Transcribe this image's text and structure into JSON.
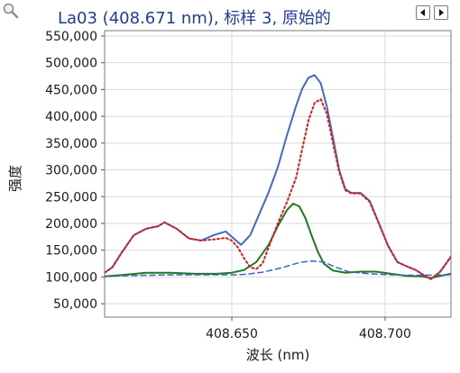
{
  "header": {
    "title": "La03 (408.671 nm), 标样 3, 原始的",
    "prev_icon": "triangle-left-icon",
    "next_icon": "triangle-right-icon",
    "zoom_icon": "magnifier-icon"
  },
  "chart_data": {
    "type": "line",
    "title": "La03 (408.671 nm), 标样 3, 原始的",
    "xlabel": "波长 (nm)",
    "ylabel": "强度",
    "xlim": [
      408.6085,
      408.7215
    ],
    "ylim": [
      25000,
      560000
    ],
    "x_ticks": [
      408.65,
      408.7
    ],
    "x_tick_labels": [
      "408.650",
      "408.700"
    ],
    "y_ticks": [
      50000,
      100000,
      150000,
      200000,
      250000,
      300000,
      350000,
      400000,
      450000,
      500000,
      550000
    ],
    "y_tick_labels": [
      "50,000",
      "100,000",
      "150,000",
      "200,000",
      "250,000",
      "300,000",
      "350,000",
      "400,000",
      "450,000",
      "500,000",
      "550,000"
    ],
    "grid": true,
    "series": [
      {
        "color": "#4169c9",
        "dash": "solid",
        "width": 2,
        "x": [
          408.6085,
          408.611,
          408.614,
          408.618,
          408.622,
          408.626,
          408.628,
          408.632,
          408.636,
          408.64,
          408.644,
          408.648,
          408.65,
          408.653,
          408.656,
          408.659,
          408.662,
          408.665,
          408.668,
          408.671,
          408.673,
          408.675,
          408.677,
          408.679,
          408.681,
          408.683,
          408.685,
          408.687,
          408.689,
          408.692,
          408.695,
          408.698,
          408.701,
          408.704,
          408.707,
          408.71,
          408.713,
          408.715,
          408.718,
          408.7215
        ],
        "y": [
          108000,
          118000,
          145000,
          178000,
          190000,
          195000,
          202000,
          190000,
          172000,
          168000,
          178000,
          185000,
          175000,
          160000,
          178000,
          218000,
          258000,
          305000,
          365000,
          420000,
          452000,
          472000,
          477000,
          462000,
          418000,
          360000,
          300000,
          264000,
          257000,
          257000,
          242000,
          200000,
          158000,
          128000,
          120000,
          113000,
          102000,
          96000,
          110000,
          138000
        ]
      },
      {
        "color": "#e01818",
        "dash": "dot",
        "width": 2,
        "x": [
          408.6085,
          408.611,
          408.614,
          408.618,
          408.622,
          408.626,
          408.628,
          408.632,
          408.636,
          408.64,
          408.644,
          408.648,
          408.65,
          408.652,
          408.654,
          408.656,
          408.658,
          408.66,
          408.662,
          408.665,
          408.668,
          408.671,
          408.673,
          408.675,
          408.677,
          408.679,
          408.681,
          408.683,
          408.685,
          408.687,
          408.689,
          408.692,
          408.695,
          408.698,
          408.701,
          408.704,
          408.707,
          408.71,
          408.713,
          408.715,
          408.718,
          408.7215
        ],
        "y": [
          108000,
          118000,
          145000,
          178000,
          190000,
          195000,
          202000,
          190000,
          172000,
          168000,
          170000,
          173000,
          168000,
          155000,
          135000,
          118000,
          115000,
          125000,
          155000,
          200000,
          240000,
          286000,
          340000,
          392000,
          425000,
          432000,
          405000,
          350000,
          297000,
          262000,
          256000,
          256000,
          240000,
          200000,
          158000,
          128000,
          120000,
          113000,
          102000,
          96000,
          110000,
          138000
        ]
      },
      {
        "color": "#1f7a1f",
        "dash": "solid",
        "width": 2,
        "x": [
          408.6085,
          408.615,
          408.622,
          408.63,
          408.638,
          408.645,
          408.65,
          408.654,
          408.658,
          408.662,
          408.665,
          408.668,
          408.67,
          408.672,
          408.674,
          408.676,
          408.678,
          408.68,
          408.683,
          408.687,
          408.692,
          408.697,
          408.702,
          408.707,
          408.712,
          408.715,
          408.718,
          408.7215
        ],
        "y": [
          101000,
          104000,
          108000,
          108000,
          106000,
          106000,
          108000,
          113000,
          128000,
          160000,
          195000,
          225000,
          237000,
          232000,
          210000,
          178000,
          148000,
          125000,
          112000,
          108000,
          110000,
          110000,
          106000,
          102000,
          101000,
          98000,
          102000,
          106000
        ]
      },
      {
        "color": "#3a64c8",
        "dash": "dash",
        "width": 1.5,
        "x": [
          408.6085,
          408.62,
          408.632,
          408.642,
          408.648,
          408.652,
          408.656,
          408.66,
          408.664,
          408.668,
          408.672,
          408.676,
          408.68,
          408.684,
          408.688,
          408.695,
          408.702,
          408.71,
          408.7215
        ],
        "y": [
          101000,
          103000,
          104000,
          104000,
          104000,
          104000,
          106000,
          109000,
          114000,
          120000,
          127000,
          130000,
          128000,
          118000,
          110000,
          106000,
          104000,
          103000,
          104000
        ]
      }
    ]
  }
}
